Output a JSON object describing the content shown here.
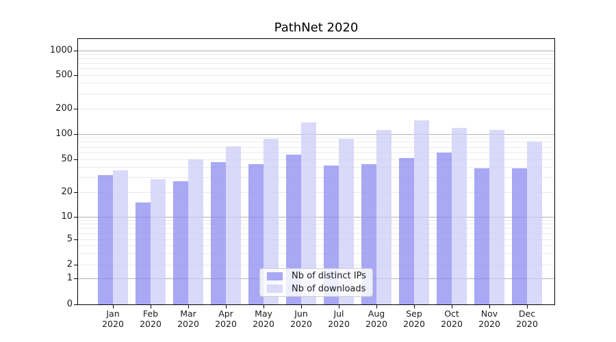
{
  "title": "PathNet 2020",
  "chart_data": {
    "type": "bar",
    "title": "PathNet 2020",
    "year_label": "2020",
    "categories": [
      "Jan",
      "Feb",
      "Mar",
      "Apr",
      "May",
      "Jun",
      "Jul",
      "Aug",
      "Sep",
      "Oct",
      "Nov",
      "Dec"
    ],
    "series": [
      {
        "name": "Nb of distinct IPs",
        "fill": "rgba(139,139,240,0.75)",
        "legend_color": "#a8a8f4",
        "values": [
          32,
          15,
          27,
          46,
          44,
          57,
          42,
          44,
          52,
          60,
          39,
          39
        ]
      },
      {
        "name": "Nb of downloads",
        "fill": "rgba(204,204,248,0.75)",
        "legend_color": "#d9d9f9",
        "values": [
          37,
          29,
          50,
          71,
          87,
          138,
          87,
          112,
          146,
          119,
          111,
          82
        ]
      }
    ],
    "yticks": [
      0,
      1,
      2,
      5,
      10,
      20,
      50,
      100,
      200,
      500,
      1000
    ],
    "yscale": "symlog",
    "grid": "both",
    "legend_position": "lower center"
  },
  "colors": {
    "major_grid": "#b0b0b0",
    "minor_grid": "#ebebeb",
    "axis": "#000000",
    "text": "#1a1a1a",
    "legend_border": "#cccccc",
    "legend_bg": "rgba(255,255,255,0.8)"
  }
}
